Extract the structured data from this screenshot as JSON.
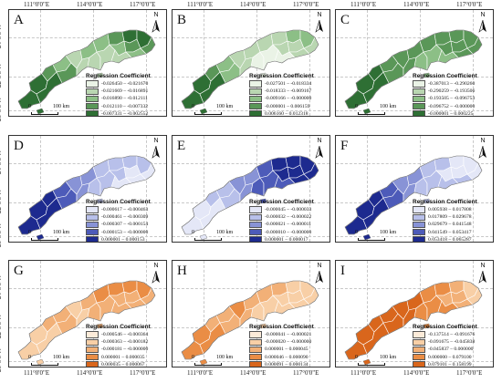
{
  "figure": {
    "x_ticks": [
      "111°0'0\"E",
      "114°0'0\"E",
      "117°0'0\"E"
    ],
    "y_ticks": [
      "24°0'0\"N",
      "22°0'0\"N",
      "20°0'0\"N"
    ],
    "north_label": "N",
    "legend_title": "Regression Coefficient",
    "scale": {
      "zero": "0",
      "label": "100 km"
    }
  },
  "panels": [
    {
      "letter": "A",
      "palette": "green",
      "colors": [
        "#eaf3e6",
        "#b9d6b1",
        "#8cbf86",
        "#5a9758",
        "#2e6f34"
      ],
      "legend": [
        "-0.026450 – -0.021670",
        "-0.021669 – -0.016891",
        "-0.016890 – -0.012111",
        "-0.012110 – -0.007332",
        "-0.007331 – -0.002552"
      ]
    },
    {
      "letter": "B",
      "palette": "green",
      "colors": [
        "#eaf3e6",
        "#b9d6b1",
        "#8cbf86",
        "#5a9758",
        "#2e6f34"
      ],
      "legend": [
        "-0.027501 – -0.018334",
        "-0.018333 – -0.009167",
        "-0.009166 – -0.000000",
        "-0.000001 – 0.006159",
        "0.006160 – 0.012318"
      ]
    },
    {
      "letter": "C",
      "palette": "green",
      "colors": [
        "#eaf3e6",
        "#b9d6b1",
        "#8cbf86",
        "#5a9758",
        "#2e6f34"
      ],
      "legend": [
        "-0.387013 – -0.290260",
        "-0.290259 – -0.193506",
        "-0.193505 – -0.096753",
        "-0.096752 – -0.000000",
        "-0.000001 – 0.000225"
      ]
    },
    {
      "letter": "D",
      "palette": "blue",
      "colors": [
        "#e4e7f7",
        "#b8c0ea",
        "#8893d6",
        "#4d5bb9",
        "#1d2a8f"
      ],
      "legend": [
        "-0.000617 – -0.000463",
        "-0.000461 – -0.000309",
        "-0.000307 – -0.000154",
        "-0.000153 – -0.000000",
        "0.000001 – 0.000153"
      ]
    },
    {
      "letter": "E",
      "palette": "blue",
      "colors": [
        "#e4e7f7",
        "#b8c0ea",
        "#8893d6",
        "#4d5bb9",
        "#1d2a8f"
      ],
      "legend": [
        "-0.000045 – -0.000033",
        "-0.000032 – -0.000022",
        "-0.000021 – -0.000011",
        "-0.000010 – -0.000000",
        "0.000001 – 0.000017"
      ]
    },
    {
      "letter": "F",
      "palette": "blue",
      "colors": [
        "#e4e7f7",
        "#b8c0ea",
        "#8893d6",
        "#4d5bb9",
        "#1d2a8f"
      ],
      "legend": [
        "0.005938 – 0.017808",
        "0.017809 – 0.029678",
        "0.029679 – 0.041548",
        "0.041549 – 0.053417",
        "0.053418 – 0.065287"
      ]
    },
    {
      "letter": "G",
      "palette": "orange",
      "colors": [
        "#fcebd9",
        "#f8cfa6",
        "#f2b077",
        "#ea8d45",
        "#d9661c"
      ],
      "legend": [
        "-0.000546 – -0.000364",
        "-0.000363 – -0.000182",
        "-0.000181 – -0.000000",
        "0.000001 – 0.000035",
        "0.000035 – 0.000067"
      ]
    },
    {
      "letter": "H",
      "palette": "orange",
      "colors": [
        "#fcebd9",
        "#f8cfa6",
        "#f2b077",
        "#ea8d45",
        "#d9661c"
      ],
      "legend": [
        "-0.000041 – -0.000021",
        "-0.000020 – -0.000000",
        "0.000001 – 0.000045",
        "0.000046 – 0.000090",
        "0.000091 – 0.000134"
      ]
    },
    {
      "letter": "I",
      "palette": "orange",
      "colors": [
        "#fcebd9",
        "#f8cfa6",
        "#f2b077",
        "#ea8d45",
        "#d9661c"
      ],
      "legend": [
        "-0.137514 – -0.091676",
        "-0.091675 – -0.045838",
        "-0.045837 – 0.000000",
        "0.000000 – 0.079100",
        "0.079101 – 0.158199"
      ]
    }
  ]
}
